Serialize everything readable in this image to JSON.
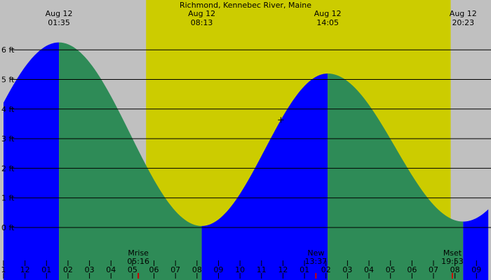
{
  "chart_data": {
    "type": "area",
    "title": "Richmond, Kennebec River, Maine",
    "y_unit": "ft",
    "y_range": [
      -0.9,
      6.2
    ],
    "y_ticks": [
      {
        "value": 6,
        "label": "6 ft"
      },
      {
        "value": 5,
        "label": "5 ft"
      },
      {
        "value": 4,
        "label": "4 ft"
      },
      {
        "value": 3,
        "label": "3 ft"
      },
      {
        "value": 2,
        "label": "2 ft"
      },
      {
        "value": 1,
        "label": "1 ft"
      },
      {
        "value": 0,
        "label": "0 ft"
      }
    ],
    "x_range_hours": [
      0.0,
      22.55
    ],
    "x_ticks": [
      {
        "hour": 0.0,
        "label": "1"
      },
      {
        "hour": 1.0,
        "label": "12"
      },
      {
        "hour": 2.0,
        "label": "01"
      },
      {
        "hour": 3.0,
        "label": "02"
      },
      {
        "hour": 4.0,
        "label": "03"
      },
      {
        "hour": 5.0,
        "label": "04"
      },
      {
        "hour": 6.0,
        "label": "05"
      },
      {
        "hour": 7.0,
        "label": "06"
      },
      {
        "hour": 8.0,
        "label": "07"
      },
      {
        "hour": 9.0,
        "label": "08"
      },
      {
        "hour": 10.0,
        "label": "09"
      },
      {
        "hour": 11.0,
        "label": "10"
      },
      {
        "hour": 12.0,
        "label": "11"
      },
      {
        "hour": 13.0,
        "label": "12"
      },
      {
        "hour": 14.0,
        "label": "01"
      },
      {
        "hour": 15.0,
        "label": "02"
      },
      {
        "hour": 16.0,
        "label": "03"
      },
      {
        "hour": 17.0,
        "label": "04"
      },
      {
        "hour": 18.0,
        "label": "05"
      },
      {
        "hour": 19.0,
        "label": "06"
      },
      {
        "hour": 20.0,
        "label": "07"
      },
      {
        "hour": 21.0,
        "label": "08"
      },
      {
        "hour": 22.0,
        "label": "09"
      }
    ],
    "extremes": [
      {
        "hour": 2.58,
        "height": 6.25,
        "type": "high",
        "date": "Aug 12",
        "time": "01:35"
      },
      {
        "hour": 9.22,
        "height": 0.05,
        "type": "low",
        "date": "Aug 12",
        "time": "08:13"
      },
      {
        "hour": 15.08,
        "height": 5.2,
        "type": "high",
        "date": "Aug 12",
        "time": "14:05"
      },
      {
        "hour": 21.38,
        "height": 0.2,
        "type": "low",
        "date": "Aug 12",
        "time": "20:23"
      }
    ],
    "edges": {
      "start_height": 4.0,
      "end_height": 1.05
    },
    "daylight_hours": [
      6.63,
      20.8
    ],
    "events": [
      {
        "hour": 6.27,
        "label": "Mrise",
        "time": "05:16"
      },
      {
        "hour": 14.53,
        "label": "New",
        "time": "13:37"
      },
      {
        "hour": 20.88,
        "label": "Mset",
        "time": "19:53"
      }
    ],
    "marker_hour": 12.9,
    "grid": true,
    "colors": {
      "night": "#c0c0c0",
      "day": "#cccc00",
      "rising": "#0000ff",
      "falling": "#2e8b57",
      "grid": "#000000",
      "event_tick": "#cc0000"
    }
  }
}
